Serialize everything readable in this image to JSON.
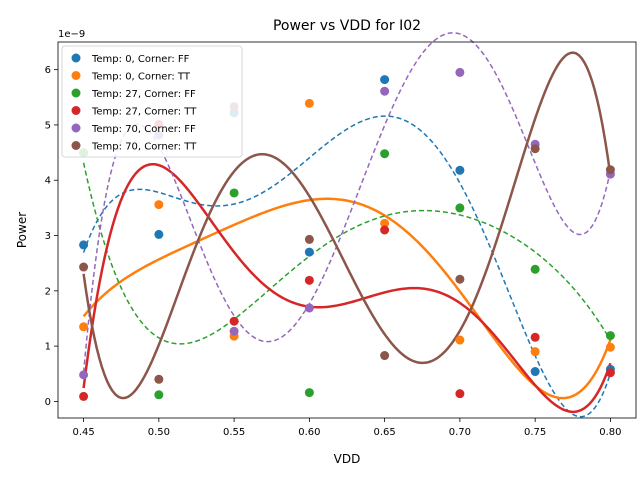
{
  "chart_data": {
    "type": "scatter",
    "title": "Power vs VDD for I02",
    "xlabel": "VDD",
    "ylabel": "Power",
    "y_scale_label": "1e−9",
    "y_scale": 1e-09,
    "xlim": [
      0.433,
      0.817
    ],
    "ylim": [
      -0.3,
      6.5
    ],
    "x_ticks": [
      0.45,
      0.5,
      0.55,
      0.6,
      0.65,
      0.7,
      0.75,
      0.8
    ],
    "x_tick_labels": [
      "0.45",
      "0.50",
      "0.55",
      "0.60",
      "0.65",
      "0.70",
      "0.75",
      "0.80"
    ],
    "y_ticks": [
      0,
      1,
      2,
      3,
      4,
      5,
      6
    ],
    "y_tick_labels": [
      "0",
      "1",
      "2",
      "3",
      "4",
      "5",
      "6"
    ],
    "grid": false,
    "legend_position": "top-left",
    "x": [
      0.45,
      0.5,
      0.55,
      0.6,
      0.65,
      0.7,
      0.75,
      0.8
    ],
    "series": [
      {
        "name": "Temp: 0, Corner: FF",
        "color": "#1f77b4",
        "values": [
          2.83,
          3.02,
          5.22,
          2.7,
          5.82,
          4.18,
          0.54,
          0.58
        ],
        "fit_style": "dashed"
      },
      {
        "name": "Temp: 0, Corner: TT",
        "color": "#ff7f0e",
        "values": [
          1.35,
          3.56,
          1.18,
          5.39,
          3.22,
          1.11,
          0.9,
          0.98
        ],
        "fit_style": "solid"
      },
      {
        "name": "Temp: 27, Corner: FF",
        "color": "#2ca02c",
        "values": [
          4.5,
          0.12,
          3.77,
          0.16,
          4.48,
          3.5,
          2.39,
          1.19
        ],
        "fit_style": "dashed"
      },
      {
        "name": "Temp: 27, Corner: TT",
        "color": "#d62728",
        "values": [
          0.09,
          5.01,
          1.45,
          2.19,
          3.1,
          0.14,
          1.16,
          0.52
        ],
        "fit_style": "solid"
      },
      {
        "name": "Temp: 70, Corner: FF",
        "color": "#9467bd",
        "values": [
          0.48,
          4.82,
          1.27,
          1.69,
          5.61,
          5.95,
          4.65,
          4.11
        ],
        "fit_style": "dashed"
      },
      {
        "name": "Temp: 70, Corner: TT",
        "color": "#8c564b",
        "values": [
          2.43,
          0.4,
          5.33,
          2.93,
          0.83,
          2.21,
          4.57,
          4.19
        ],
        "fit_style": "solid"
      }
    ]
  }
}
